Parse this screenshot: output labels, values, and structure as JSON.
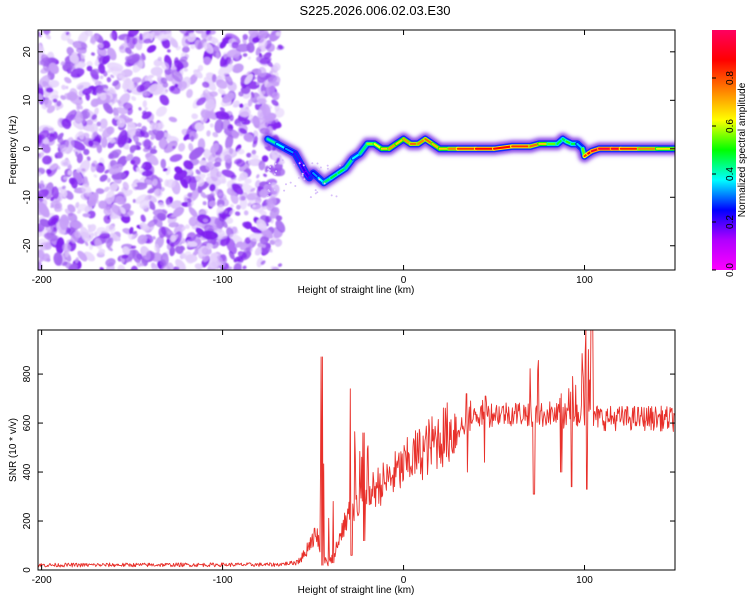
{
  "title": "S225.2026.006.02.03.E30",
  "chart_data": [
    {
      "type": "heatmap",
      "xlabel": "Height of straight line (km)",
      "ylabel": "Frequency (Hz)",
      "xlim": [
        -202,
        150
      ],
      "ylim": [
        -25,
        24.5
      ],
      "xticks": [
        -200,
        -100,
        0,
        100
      ],
      "yticks": [
        -20,
        -10,
        0,
        10,
        20
      ],
      "colorbar": {
        "label": "Normalized spectral amplitude",
        "range": [
          0,
          1
        ],
        "ticks": [
          0.0,
          0.2,
          0.4,
          0.6,
          0.8
        ],
        "tick_labels": [
          "0.0",
          "0.2",
          "0.4",
          "0.6",
          "0.8"
        ],
        "stops": [
          "#ff00ff",
          "#b000ff",
          "#0000ff",
          "#00ffff",
          "#00ff00",
          "#ffff00",
          "#ff8000",
          "#ff0000",
          "#ff0060"
        ]
      },
      "noise_region": {
        "x": [
          -202,
          -68
        ],
        "y": [
          -25,
          24.5
        ],
        "colors": [
          "#8020f0",
          "#a060f0",
          "#c8a0f8",
          "#e4d0fc"
        ]
      },
      "ridge": {
        "x": [
          -75,
          -70,
          -65,
          -60,
          -57,
          -54,
          -52,
          -50,
          -47,
          -44,
          -40,
          -36,
          -32,
          -28,
          -24,
          -20,
          -16,
          -12,
          -8,
          -4,
          0,
          4,
          8,
          12,
          16,
          20,
          25,
          30,
          40,
          50,
          60,
          70,
          75,
          80,
          85,
          88,
          90,
          93,
          96,
          99,
          100,
          102,
          104,
          108,
          115,
          120,
          130,
          140,
          150
        ],
        "freq": [
          2,
          1,
          0,
          -1,
          -3,
          -5,
          -6,
          -5,
          -6,
          -7,
          -6,
          -5,
          -4,
          -2,
          -1,
          1,
          1,
          0,
          0,
          1,
          2,
          1,
          1,
          2,
          1,
          0,
          0,
          0,
          0,
          0,
          0.5,
          0.5,
          1,
          1,
          1,
          2,
          1.5,
          1,
          1,
          0,
          -1.5,
          -1,
          -0.5,
          0,
          0,
          0,
          0,
          0,
          0
        ],
        "amplitude": [
          0.45,
          0.4,
          0.35,
          0.3,
          0.25,
          0.2,
          0.25,
          0.3,
          0.35,
          0.4,
          0.5,
          0.45,
          0.5,
          0.4,
          0.35,
          0.55,
          0.6,
          0.65,
          0.7,
          0.75,
          0.6,
          0.85,
          0.7,
          0.8,
          0.75,
          0.65,
          0.7,
          0.8,
          0.85,
          0.9,
          0.85,
          0.8,
          0.75,
          0.6,
          0.5,
          0.45,
          0.5,
          0.55,
          0.4,
          0.3,
          0.8,
          0.85,
          0.9,
          0.95,
          0.95,
          0.9,
          0.8,
          0.7,
          0.6
        ]
      }
    },
    {
      "type": "line",
      "xlabel": "Height of straight line (km)",
      "ylabel": "SNR (10 * v/v)",
      "xlim": [
        -202,
        150
      ],
      "ylim": [
        0,
        980
      ],
      "xticks": [
        -200,
        -100,
        0,
        100
      ],
      "yticks": [
        0,
        200,
        400,
        600,
        800
      ],
      "series": [
        {
          "name": "SNR",
          "color": "#e8302a",
          "x": [
            -202,
            -70,
            -60,
            -55,
            -52,
            -48,
            -46,
            -44,
            -42,
            -40,
            -38,
            -35,
            -33,
            -30,
            -25,
            -20,
            -15,
            -10,
            -5,
            0,
            5,
            10,
            20,
            30,
            40,
            50,
            60,
            70,
            75,
            80,
            85,
            90,
            95,
            100,
            105,
            110,
            120,
            130,
            140,
            150
          ],
          "values": [
            20,
            22,
            30,
            60,
            110,
            150,
            100,
            40,
            30,
            40,
            80,
            140,
            180,
            230,
            270,
            300,
            340,
            360,
            390,
            420,
            460,
            480,
            540,
            580,
            620,
            640,
            640,
            640,
            630,
            640,
            630,
            620,
            640,
            640,
            630,
            620,
            620,
            620,
            620,
            615
          ],
          "spikes": [
            {
              "x": -45,
              "peak": 870,
              "dip": 20
            },
            {
              "x": -39,
              "peak": 280,
              "dip": 30
            },
            {
              "x": -29,
              "peak": 740,
              "dip": 60
            },
            {
              "x": -22,
              "peak": 560,
              "dip": 120
            },
            {
              "x": 35,
              "peak": 720,
              "dip": 400
            },
            {
              "x": 45,
              "peak": 710,
              "dip": 440
            },
            {
              "x": 72,
              "peak": 960,
              "dip": 310
            },
            {
              "x": 87,
              "peak": 720,
              "dip": 400
            },
            {
              "x": 93,
              "peak": 790,
              "dip": 340
            },
            {
              "x": 101,
              "peak": 980,
              "dip": 330
            },
            {
              "x": 104,
              "peak": 980,
              "dip": 380
            }
          ]
        }
      ]
    }
  ]
}
